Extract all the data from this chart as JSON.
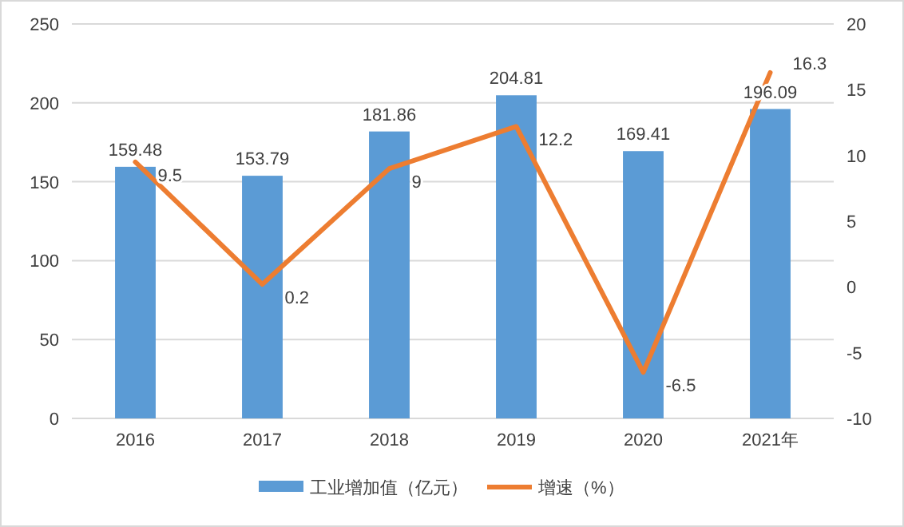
{
  "chart_data": {
    "type": "bar",
    "categories": [
      "2016",
      "2017",
      "2018",
      "2019",
      "2020",
      "2021年"
    ],
    "series": [
      {
        "name": "工业增加值（亿元）",
        "color": "#5b9bd5",
        "values": [
          159.48,
          153.79,
          181.86,
          204.81,
          169.41,
          196.09
        ]
      },
      {
        "name": "增速（%）",
        "type": "line",
        "axis": "y2",
        "color": "#ed7d31",
        "values": [
          9.5,
          0.2,
          9,
          12.2,
          -6.5,
          16.3
        ]
      }
    ],
    "ylim": [
      0,
      250
    ],
    "yticks": [
      0,
      50,
      100,
      150,
      200,
      250
    ],
    "y2lim": [
      -10,
      20
    ],
    "y2ticks": [
      -10,
      -5,
      0,
      5,
      10,
      15,
      20
    ],
    "grid": "y",
    "legend": "bottom",
    "data_labels": true,
    "marker": "none"
  }
}
